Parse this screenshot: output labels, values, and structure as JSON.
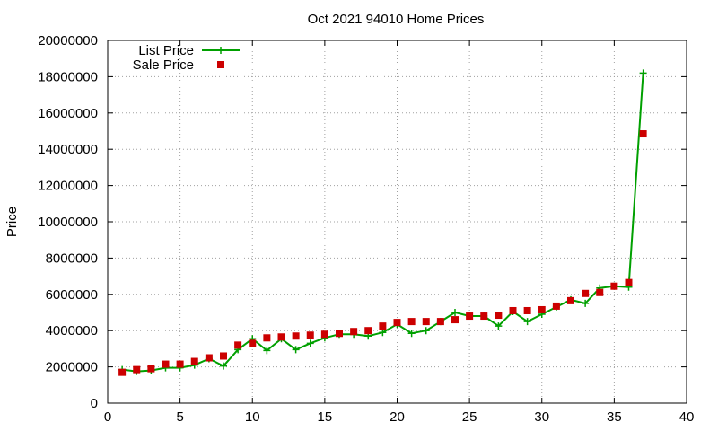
{
  "chart_data": {
    "type": "line",
    "title": "Oct 2021 94010 Home Prices",
    "xlabel": "",
    "ylabel": "Price",
    "xlim": [
      0,
      40
    ],
    "ylim": [
      0,
      20000000
    ],
    "xticks": [
      0,
      5,
      10,
      15,
      20,
      25,
      30,
      35,
      40
    ],
    "yticks": [
      0,
      2000000,
      4000000,
      6000000,
      8000000,
      10000000,
      12000000,
      14000000,
      16000000,
      18000000,
      20000000
    ],
    "grid": true,
    "legend": "top-left",
    "x": [
      1,
      2,
      3,
      4,
      5,
      6,
      7,
      8,
      9,
      10,
      11,
      12,
      13,
      14,
      15,
      16,
      17,
      18,
      19,
      20,
      21,
      22,
      23,
      24,
      25,
      26,
      27,
      28,
      29,
      30,
      31,
      32,
      33,
      34,
      35,
      36,
      37
    ],
    "series": [
      {
        "name": "List Price",
        "style": "line-points",
        "marker": "plus",
        "color": "#00a000",
        "values": [
          1850000,
          1750000,
          1800000,
          1950000,
          1950000,
          2100000,
          2450000,
          2050000,
          2950000,
          3550000,
          2900000,
          3550000,
          2950000,
          3300000,
          3600000,
          3800000,
          3800000,
          3700000,
          3900000,
          4350000,
          3850000,
          4000000,
          4500000,
          5000000,
          4800000,
          4800000,
          4250000,
          5050000,
          4500000,
          4900000,
          5300000,
          5700000,
          5500000,
          6350000,
          6450000,
          6400000,
          18200000
        ]
      },
      {
        "name": "Sale Price",
        "style": "points",
        "marker": "square",
        "color": "#cc0000",
        "values": [
          1700000,
          1850000,
          1900000,
          2150000,
          2150000,
          2300000,
          2500000,
          2600000,
          3200000,
          3300000,
          3600000,
          3650000,
          3700000,
          3750000,
          3800000,
          3850000,
          3950000,
          4000000,
          4250000,
          4450000,
          4500000,
          4500000,
          4500000,
          4600000,
          4800000,
          4800000,
          4850000,
          5100000,
          5100000,
          5150000,
          5350000,
          5650000,
          6050000,
          6100000,
          6450000,
          6650000,
          14850000
        ]
      }
    ]
  }
}
